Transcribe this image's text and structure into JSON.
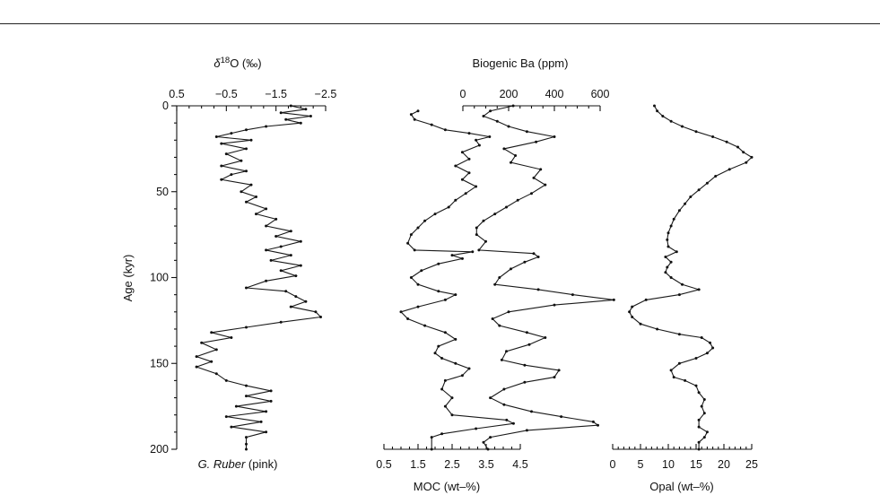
{
  "panels": {
    "d18o": {
      "axis_title_symbol": "δ",
      "axis_title_sup": "18",
      "axis_title_rest": "O (‰)",
      "ticks": [
        "0.5",
        "−0.5",
        "−1.5",
        "−2.5"
      ],
      "caption_italic": "G. Ruber",
      "caption_rest": " (pink)"
    },
    "ba": {
      "axis_title": "Biogenic Ba (ppm)",
      "ticks": [
        "0",
        "200",
        "400",
        "600"
      ]
    },
    "moc": {
      "axis_title": "MOC (wt–%)",
      "ticks": [
        "0.5",
        "1.5",
        "2.5",
        "3.5",
        "4.5"
      ]
    },
    "opal": {
      "axis_title": "Opal (wt–%)",
      "ticks": [
        "0",
        "5",
        "10",
        "15",
        "20",
        "25"
      ]
    },
    "age": {
      "axis_title": "Age (kyr)",
      "ticks": [
        "0",
        "50",
        "100",
        "150",
        "200"
      ]
    }
  },
  "chart_data": {
    "type": "line",
    "layout": "stratigraphic depth profiles sharing a vertical Age axis (increasing downward)",
    "ylabel": "Age (kyr)",
    "ylim": [
      0,
      200
    ],
    "y_inverted": true,
    "series": [
      {
        "key": "d18o",
        "name": "G. Ruber (pink)",
        "xlabel": "δ18O (‰)",
        "xlim": [
          0.5,
          -2.5
        ],
        "x_reversed": true,
        "color": "#1a1a1a",
        "points": [
          [
            -1.8,
            0
          ],
          [
            -2.1,
            2
          ],
          [
            -1.6,
            4
          ],
          [
            -2.2,
            6
          ],
          [
            -1.7,
            8
          ],
          [
            -2.0,
            10
          ],
          [
            -1.3,
            12
          ],
          [
            -0.9,
            14
          ],
          [
            -0.6,
            16
          ],
          [
            -0.3,
            18
          ],
          [
            -1.0,
            20
          ],
          [
            -0.4,
            22
          ],
          [
            -0.9,
            25
          ],
          [
            -0.5,
            28
          ],
          [
            -0.8,
            32
          ],
          [
            -0.4,
            35
          ],
          [
            -0.9,
            38
          ],
          [
            -0.6,
            40
          ],
          [
            -0.4,
            43
          ],
          [
            -1.0,
            46
          ],
          [
            -0.8,
            50
          ],
          [
            -1.1,
            53
          ],
          [
            -0.9,
            56
          ],
          [
            -1.3,
            60
          ],
          [
            -1.1,
            63
          ],
          [
            -1.5,
            66
          ],
          [
            -1.3,
            70
          ],
          [
            -1.8,
            73
          ],
          [
            -1.5,
            76
          ],
          [
            -2.0,
            79
          ],
          [
            -1.6,
            82
          ],
          [
            -1.3,
            84
          ],
          [
            -1.8,
            87
          ],
          [
            -1.4,
            90
          ],
          [
            -2.0,
            93
          ],
          [
            -1.6,
            96
          ],
          [
            -1.9,
            99
          ],
          [
            -1.3,
            102
          ],
          [
            -0.9,
            106
          ],
          [
            -1.7,
            108
          ],
          [
            -1.9,
            111
          ],
          [
            -2.1,
            114
          ],
          [
            -1.8,
            117
          ],
          [
            -2.3,
            120
          ],
          [
            -2.4,
            123
          ],
          [
            -1.6,
            126
          ],
          [
            -0.9,
            129
          ],
          [
            -0.2,
            132
          ],
          [
            -0.6,
            135
          ],
          [
            0.0,
            138
          ],
          [
            -0.3,
            142
          ],
          [
            0.1,
            146
          ],
          [
            -0.2,
            149
          ],
          [
            0.1,
            152
          ],
          [
            -0.3,
            156
          ],
          [
            -0.5,
            160
          ],
          [
            -0.9,
            163
          ],
          [
            -1.4,
            166
          ],
          [
            -0.9,
            169
          ],
          [
            -1.4,
            172
          ],
          [
            -0.7,
            175
          ],
          [
            -1.3,
            178
          ],
          [
            -0.5,
            181
          ],
          [
            -1.2,
            184
          ],
          [
            -0.6,
            187
          ],
          [
            -1.3,
            190
          ],
          [
            -0.9,
            193
          ],
          [
            -0.9,
            197
          ],
          [
            -0.9,
            200
          ]
        ]
      },
      {
        "key": "moc",
        "name": "MOC",
        "xlabel": "MOC (wt–%)",
        "xlim": [
          0.5,
          4.5
        ],
        "color": "#1a1a1a",
        "points": [
          [
            1.5,
            3
          ],
          [
            1.3,
            5
          ],
          [
            1.4,
            8
          ],
          [
            1.9,
            11
          ],
          [
            2.3,
            14
          ],
          [
            3.0,
            16
          ],
          [
            3.6,
            18
          ],
          [
            3.2,
            20
          ],
          [
            3.3,
            23
          ],
          [
            2.8,
            27
          ],
          [
            3.0,
            31
          ],
          [
            2.6,
            35
          ],
          [
            3.0,
            39
          ],
          [
            2.8,
            43
          ],
          [
            3.2,
            47
          ],
          [
            2.9,
            51
          ],
          [
            2.6,
            55
          ],
          [
            2.4,
            59
          ],
          [
            2.0,
            63
          ],
          [
            1.7,
            67
          ],
          [
            1.5,
            71
          ],
          [
            1.3,
            75
          ],
          [
            1.2,
            80
          ],
          [
            1.4,
            84
          ],
          [
            3.1,
            85
          ],
          [
            2.5,
            87
          ],
          [
            2.8,
            89
          ],
          [
            2.1,
            92
          ],
          [
            1.6,
            96
          ],
          [
            1.3,
            100
          ],
          [
            1.5,
            104
          ],
          [
            2.1,
            108
          ],
          [
            2.6,
            110
          ],
          [
            2.3,
            113
          ],
          [
            1.5,
            117
          ],
          [
            1.0,
            120
          ],
          [
            1.2,
            124
          ],
          [
            1.7,
            128
          ],
          [
            2.3,
            132
          ],
          [
            2.6,
            136
          ],
          [
            2.1,
            140
          ],
          [
            2.0,
            144
          ],
          [
            2.2,
            147
          ],
          [
            2.6,
            150
          ],
          [
            3.0,
            153
          ],
          [
            2.8,
            157
          ],
          [
            2.3,
            160
          ],
          [
            2.2,
            165
          ],
          [
            2.5,
            170
          ],
          [
            2.3,
            175
          ],
          [
            2.5,
            180
          ],
          [
            4.1,
            183
          ],
          [
            4.3,
            185
          ],
          [
            3.2,
            188
          ],
          [
            2.2,
            191
          ],
          [
            1.9,
            193
          ],
          [
            1.9,
            200
          ]
        ]
      },
      {
        "key": "ba",
        "name": "Biogenic Ba",
        "xlabel": "Biogenic Ba (ppm)",
        "xlim": [
          0,
          600
        ],
        "color": "#1a1a1a",
        "points": [
          [
            220,
            0
          ],
          [
            120,
            3
          ],
          [
            90,
            6
          ],
          [
            150,
            9
          ],
          [
            200,
            12
          ],
          [
            280,
            15
          ],
          [
            400,
            18
          ],
          [
            320,
            21
          ],
          [
            180,
            25
          ],
          [
            230,
            29
          ],
          [
            210,
            33
          ],
          [
            340,
            37
          ],
          [
            310,
            42
          ],
          [
            360,
            46
          ],
          [
            300,
            51
          ],
          [
            240,
            55
          ],
          [
            190,
            59
          ],
          [
            140,
            63
          ],
          [
            90,
            67
          ],
          [
            60,
            71
          ],
          [
            60,
            75
          ],
          [
            100,
            79
          ],
          [
            70,
            84
          ],
          [
            310,
            86
          ],
          [
            330,
            88
          ],
          [
            270,
            91
          ],
          [
            210,
            95
          ],
          [
            160,
            100
          ],
          [
            140,
            104
          ],
          [
            330,
            107
          ],
          [
            480,
            110
          ],
          [
            660,
            113
          ],
          [
            400,
            116
          ],
          [
            200,
            120
          ],
          [
            130,
            124
          ],
          [
            160,
            128
          ],
          [
            280,
            132
          ],
          [
            360,
            135
          ],
          [
            290,
            139
          ],
          [
            190,
            143
          ],
          [
            170,
            148
          ],
          [
            270,
            151
          ],
          [
            420,
            154
          ],
          [
            400,
            158
          ],
          [
            270,
            161
          ],
          [
            180,
            165
          ],
          [
            120,
            170
          ],
          [
            180,
            174
          ],
          [
            300,
            178
          ],
          [
            430,
            181
          ],
          [
            570,
            184
          ],
          [
            590,
            186
          ],
          [
            280,
            189
          ],
          [
            120,
            193
          ],
          [
            90,
            196
          ],
          [
            110,
            200
          ]
        ]
      },
      {
        "key": "opal",
        "name": "Opal",
        "xlabel": "Opal (wt–%)",
        "xlim": [
          0,
          25
        ],
        "color": "#1a1a1a",
        "points": [
          [
            7.5,
            0
          ],
          [
            8.0,
            3
          ],
          [
            9.0,
            6
          ],
          [
            10.5,
            9
          ],
          [
            12.5,
            12
          ],
          [
            15,
            15
          ],
          [
            18,
            18
          ],
          [
            20.5,
            21
          ],
          [
            22.5,
            24
          ],
          [
            23.5,
            27
          ],
          [
            25,
            30
          ],
          [
            24,
            33
          ],
          [
            21,
            37
          ],
          [
            18.5,
            41
          ],
          [
            17,
            45
          ],
          [
            15.5,
            49
          ],
          [
            14,
            53
          ],
          [
            13,
            57
          ],
          [
            12,
            61
          ],
          [
            11,
            66
          ],
          [
            10.5,
            70
          ],
          [
            10,
            74
          ],
          [
            9.8,
            78
          ],
          [
            10,
            82
          ],
          [
            11.5,
            85
          ],
          [
            9.5,
            88
          ],
          [
            10.5,
            91
          ],
          [
            9.8,
            94
          ],
          [
            9.5,
            97
          ],
          [
            10.5,
            100
          ],
          [
            12.5,
            104
          ],
          [
            15.5,
            107
          ],
          [
            12,
            110
          ],
          [
            6,
            113
          ],
          [
            3.5,
            117
          ],
          [
            3,
            120
          ],
          [
            3.5,
            123
          ],
          [
            5,
            127
          ],
          [
            8,
            130
          ],
          [
            12,
            133
          ],
          [
            16,
            135
          ],
          [
            17.5,
            138
          ],
          [
            18,
            141
          ],
          [
            17,
            144
          ],
          [
            15,
            147
          ],
          [
            12,
            150
          ],
          [
            10.5,
            154
          ],
          [
            11,
            158
          ],
          [
            13,
            160
          ],
          [
            15,
            163
          ],
          [
            15.5,
            167
          ],
          [
            16.5,
            171
          ],
          [
            16,
            175
          ],
          [
            16.5,
            179
          ],
          [
            15.5,
            183
          ],
          [
            15.5,
            187
          ],
          [
            17,
            190
          ],
          [
            16.5,
            193
          ],
          [
            15.5,
            196
          ],
          [
            15.5,
            200
          ]
        ]
      }
    ]
  }
}
